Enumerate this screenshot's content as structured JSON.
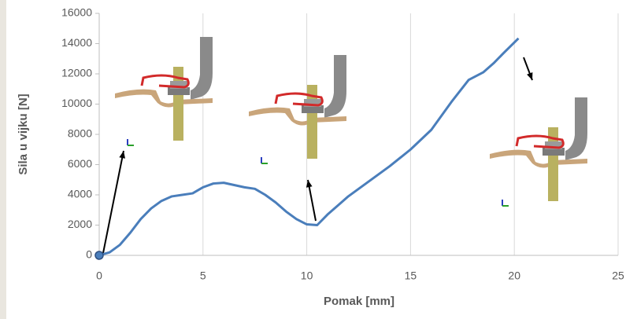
{
  "chart_data": {
    "type": "line",
    "xlabel": "Pomak [mm]",
    "ylabel": "Sila u vijku [N]",
    "x": [
      0,
      0.5,
      1,
      1.5,
      2,
      2.5,
      3,
      3.5,
      4,
      4.5,
      5,
      5.5,
      6,
      6.5,
      7,
      7.5,
      8,
      8.5,
      9,
      9.5,
      10,
      10.5,
      11,
      11.5,
      12,
      13,
      14,
      15,
      16,
      17,
      17.8,
      18.5,
      19,
      19.5,
      20.2
    ],
    "values": [
      0,
      200,
      700,
      1500,
      2400,
      3100,
      3600,
      3900,
      4000,
      4100,
      4500,
      4750,
      4800,
      4650,
      4500,
      4400,
      4000,
      3500,
      2900,
      2400,
      2050,
      2000,
      2700,
      3300,
      3900,
      4900,
      5900,
      7000,
      8300,
      10200,
      11600,
      12100,
      12700,
      13400,
      14350
    ],
    "color": "#4a7ebb",
    "xlim": [
      0,
      25
    ],
    "xticks": [
      0,
      5,
      10,
      15,
      20,
      25
    ],
    "ylim": [
      0,
      16000
    ],
    "yticks": [
      0,
      2000,
      4000,
      6000,
      8000,
      10000,
      12000,
      14000,
      16000
    ],
    "grid": "x"
  }
}
